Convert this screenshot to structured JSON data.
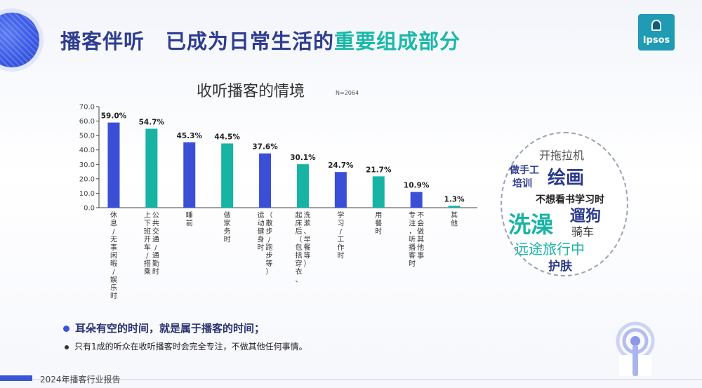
{
  "header": {
    "title_part1": "播客伴听　已成为日常生活的",
    "title_highlight": "重要组成部分",
    "logo_text": "Ipsos"
  },
  "chart_title": "收听播客的情境",
  "chart_note": "N=2064",
  "chart_data": {
    "type": "bar",
    "title": "收听播客的情境",
    "ylim": [
      0,
      70
    ],
    "yticks": [
      "0.0",
      "10.0",
      "20.0",
      "30.0",
      "40.0",
      "50.0",
      "60.0",
      "70.0"
    ],
    "categories": [
      "休息/无事闲暇/娱乐时",
      "上下班开车/公共交通/通勤时/搭乘",
      "睡前",
      "做家务时",
      "运动健身时（散步/跑步等）",
      "起床后（包括穿衣、洗漱、早餐等）",
      "学习/工作时",
      "用餐时",
      "专注，不会做其他事听播客时",
      "其他"
    ],
    "label_columns": [
      [
        "休息/无事闲暇/娱乐时"
      ],
      [
        "上下班开车/搭乘",
        "公共交通/通勤时"
      ],
      [
        "睡前"
      ],
      [
        "做家务时"
      ],
      [
        "运动健身时",
        "（散步/跑步等）"
      ],
      [
        "起床后（包括穿衣、",
        "洗漱、早餐等）"
      ],
      [
        "学习/工作时"
      ],
      [
        "用餐时"
      ],
      [
        "专注，听播客时",
        "不会做其他事"
      ],
      [
        "其他"
      ]
    ],
    "values": [
      59.0,
      54.7,
      45.3,
      44.5,
      37.6,
      30.1,
      24.7,
      21.7,
      10.9,
      1.3
    ],
    "value_labels": [
      "59.0%",
      "54.7%",
      "45.3%",
      "44.5%",
      "37.6%",
      "30.1%",
      "24.7%",
      "21.7%",
      "10.9%",
      "1.3%"
    ],
    "colors": [
      "#3b4fd6",
      "#17b3a3",
      "#3b4fd6",
      "#17b3a3",
      "#3b4fd6",
      "#17b3a3",
      "#3b4fd6",
      "#17b3a3",
      "#3b4fd6",
      "#17b3a3"
    ]
  },
  "word_cloud": [
    {
      "text": "开拖拉机",
      "color": "#555555"
    },
    {
      "text": "做手工",
      "color": "#2b3a8c"
    },
    {
      "text": "绘画",
      "color": "#2b3a8c"
    },
    {
      "text": "培训",
      "color": "#2b3a8c"
    },
    {
      "text": "不想看书学习时",
      "color": "#222222"
    },
    {
      "text": "洗澡",
      "color": "#17b3a3"
    },
    {
      "text": "遛狗",
      "color": "#2b3a8c"
    },
    {
      "text": "骑车",
      "color": "#333333"
    },
    {
      "text": "远途旅行中",
      "color": "#17b3a3"
    },
    {
      "text": "护肤",
      "color": "#2b3a8c"
    }
  ],
  "bullets": {
    "primary": "耳朵有空的时间，就是属于播客的时间；",
    "secondary": "只有1成的听众在收听播客时会完全专注，不做其他任何事情。"
  },
  "footer": {
    "report_name": "2024年播客行业报告"
  }
}
